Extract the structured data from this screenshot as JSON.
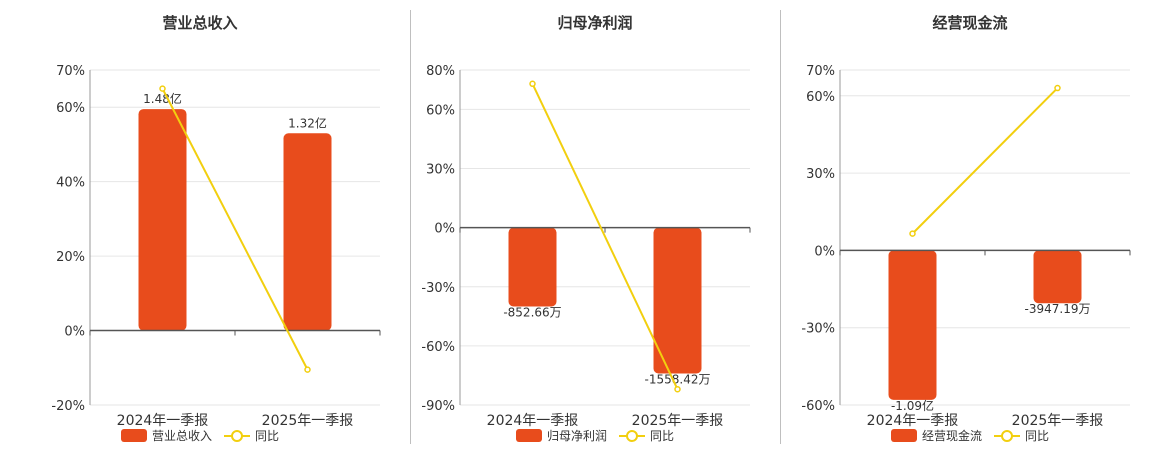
{
  "colors": {
    "bar": "#e84c1c",
    "line": "#f2cf0f",
    "axis": "#555555",
    "grid": "#e6e6e6"
  },
  "chart_data": [
    {
      "type": "bar",
      "title": "营业总收入",
      "categories": [
        "2024年一季报",
        "2025年一季报"
      ],
      "ylim": [
        -20,
        70
      ],
      "yticks": [
        -20,
        0,
        20,
        40,
        60,
        70
      ],
      "ytick_labels": [
        "-20%",
        "0%",
        "20%",
        "40%",
        "60%",
        "70%"
      ],
      "series": [
        {
          "name": "营业总收入",
          "kind": "bar",
          "values": [
            59.5,
            53.0
          ],
          "labels": [
            "1.48亿",
            "1.32亿"
          ]
        },
        {
          "name": "同比",
          "kind": "line",
          "values": [
            65.0,
            -10.5
          ]
        }
      ],
      "legend": [
        "营业总收入",
        "同比"
      ]
    },
    {
      "type": "bar",
      "title": "归母净利润",
      "categories": [
        "2024年一季报",
        "2025年一季报"
      ],
      "ylim": [
        -90,
        80
      ],
      "yticks": [
        -90,
        -60,
        -30,
        0,
        30,
        60,
        80
      ],
      "ytick_labels": [
        "-90%",
        "-60%",
        "-30%",
        "0%",
        "30%",
        "60%",
        "80%"
      ],
      "series": [
        {
          "name": "归母净利润",
          "kind": "bar",
          "values": [
            -40.0,
            -74.0
          ],
          "labels": [
            "-852.66万",
            "-1558.42万"
          ]
        },
        {
          "name": "同比",
          "kind": "line",
          "values": [
            73.0,
            -82.0
          ]
        }
      ],
      "legend": [
        "归母净利润",
        "同比"
      ]
    },
    {
      "type": "bar",
      "title": "经营现金流",
      "categories": [
        "2024年一季报",
        "2025年一季报"
      ],
      "ylim": [
        -60,
        70
      ],
      "yticks": [
        -60,
        -30,
        0,
        30,
        60,
        70
      ],
      "ytick_labels": [
        "-60%",
        "-30%",
        "0%",
        "30%",
        "60%",
        "70%"
      ],
      "series": [
        {
          "name": "经营现金流",
          "kind": "bar",
          "values": [
            -58.0,
            -20.5
          ],
          "labels": [
            "-1.09亿",
            "-3947.19万"
          ]
        },
        {
          "name": "同比",
          "kind": "line",
          "values": [
            6.5,
            63.0
          ]
        }
      ],
      "legend": [
        "经营现金流",
        "同比"
      ]
    }
  ]
}
